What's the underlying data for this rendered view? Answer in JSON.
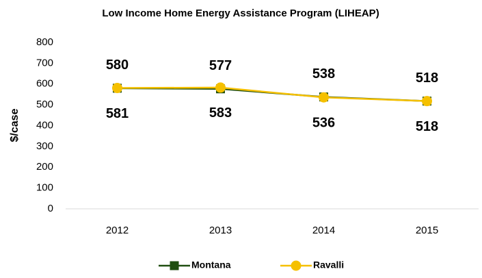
{
  "chart_data": {
    "type": "line",
    "title": "Low Income Home Energy Assistance Program (LIHEAP)",
    "y_label": "$/case",
    "categories": [
      "2012",
      "2013",
      "2014",
      "2015"
    ],
    "series": [
      {
        "name": "Montana",
        "color": "#1f4e10",
        "marker": "square",
        "values": [
          580,
          577,
          538,
          518
        ]
      },
      {
        "name": "Ravalli",
        "color": "#f5c000",
        "marker": "circle",
        "values": [
          581,
          583,
          536,
          518
        ]
      }
    ],
    "ylim": [
      0,
      800
    ],
    "yticks": [
      0,
      100,
      200,
      300,
      400,
      500,
      600,
      700,
      800
    ],
    "grid": false,
    "legend": "bottom"
  }
}
